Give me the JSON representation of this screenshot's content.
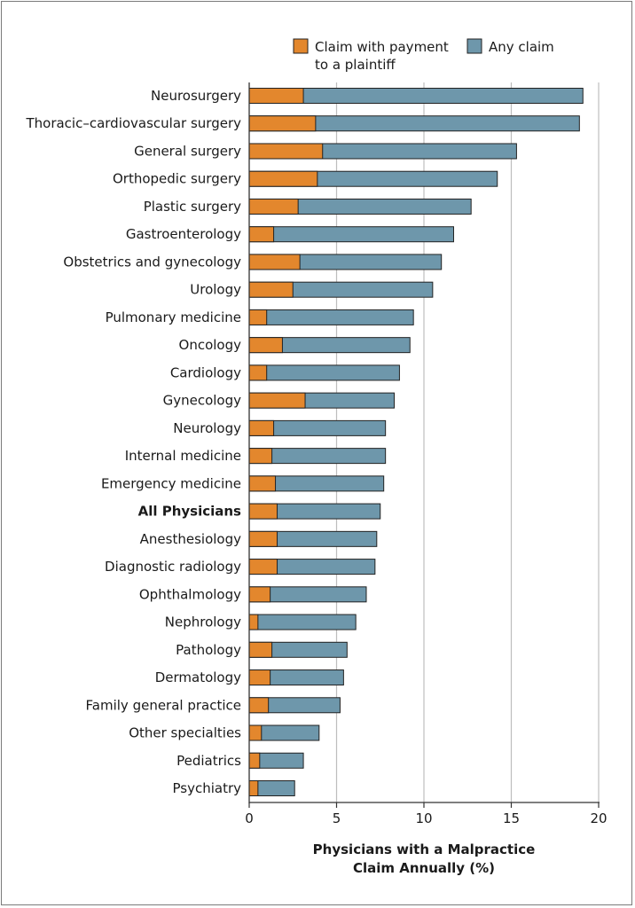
{
  "colors": {
    "payment": "#e3872d",
    "any_claim": "#6e97ab",
    "bar_stroke": "#222222",
    "grid": "#bdbdbd",
    "axis": "#333333"
  },
  "chart_data": {
    "type": "bar",
    "orientation": "horizontal",
    "stacked": "overlay",
    "xlabel": [
      "Physicians with a Malpractice",
      "Claim Annually (%)"
    ],
    "ylabel": "",
    "xlim": [
      0,
      20
    ],
    "xticks": [
      0,
      5,
      10,
      15,
      20
    ],
    "xtick_labels": [
      "0",
      "5",
      "10",
      "15",
      "20"
    ],
    "grid": "vertical",
    "legend_position": "top",
    "legend": [
      {
        "name_lines": [
          "Claim with payment",
          "to a plaintiff"
        ],
        "color_key": "payment"
      },
      {
        "name_lines": [
          "Any claim"
        ],
        "color_key": "any_claim"
      }
    ],
    "categories": [
      "Neurosurgery",
      "Thoracic–cardiovascular surgery",
      "General surgery",
      "Orthopedic surgery",
      "Plastic surgery",
      "Gastroenterology",
      "Obstetrics and gynecology",
      "Urology",
      "Pulmonary medicine",
      "Oncology",
      "Cardiology",
      "Gynecology",
      "Neurology",
      "Internal medicine",
      "Emergency medicine",
      "All Physicians",
      "Anesthesiology",
      "Diagnostic radiology",
      "Ophthalmology",
      "Nephrology",
      "Pathology",
      "Dermatology",
      "Family general practice",
      "Other specialties",
      "Pediatrics",
      "Psychiatry"
    ],
    "bold_categories": [
      "All Physicians"
    ],
    "series": [
      {
        "name": "Claim with payment to a plaintiff",
        "color_key": "payment",
        "values": [
          3.1,
          3.8,
          4.2,
          3.9,
          2.8,
          1.4,
          2.9,
          2.5,
          1.0,
          1.9,
          1.0,
          3.2,
          1.4,
          1.3,
          1.5,
          1.6,
          1.6,
          1.6,
          1.2,
          0.5,
          1.3,
          1.2,
          1.1,
          0.7,
          0.6,
          0.5
        ]
      },
      {
        "name": "Any claim",
        "color_key": "any_claim",
        "values": [
          19.1,
          18.9,
          15.3,
          14.2,
          12.7,
          11.7,
          11.0,
          10.5,
          9.4,
          9.2,
          8.6,
          8.3,
          7.8,
          7.8,
          7.7,
          7.5,
          7.3,
          7.2,
          6.7,
          6.1,
          5.6,
          5.4,
          5.2,
          4.0,
          3.1,
          2.6
        ]
      }
    ]
  }
}
